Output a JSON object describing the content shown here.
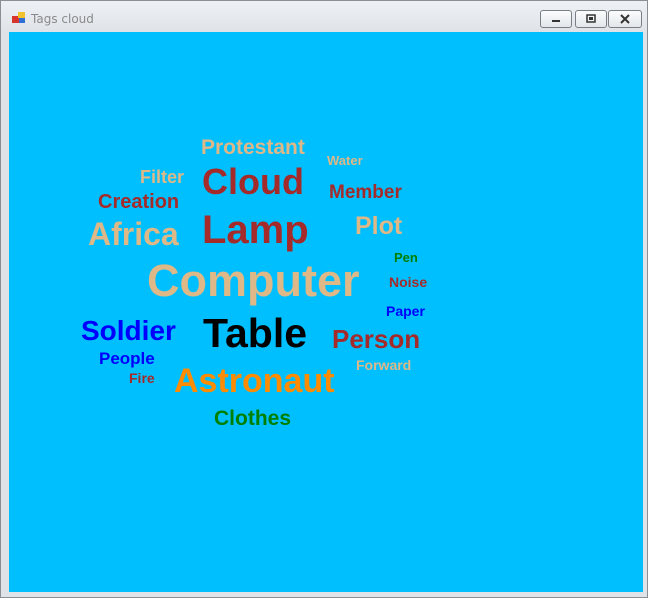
{
  "window": {
    "title": "Tags cloud"
  },
  "client": {
    "background": "#00bfff"
  },
  "colors": {
    "tan": "#deb887",
    "brown": "#a52a2a",
    "blue": "#0000ff",
    "black": "#000000",
    "orange": "#ff8c00",
    "green": "#008000"
  },
  "tags": [
    {
      "label": "Protestant",
      "color": "tan"
    },
    {
      "label": "Water",
      "color": "tan"
    },
    {
      "label": "Filter",
      "color": "tan"
    },
    {
      "label": "Cloud",
      "color": "brown"
    },
    {
      "label": "Member",
      "color": "brown"
    },
    {
      "label": "Creation",
      "color": "brown"
    },
    {
      "label": "Africa",
      "color": "tan"
    },
    {
      "label": "Lamp",
      "color": "brown"
    },
    {
      "label": "Plot",
      "color": "tan"
    },
    {
      "label": "Pen",
      "color": "green"
    },
    {
      "label": "Computer",
      "color": "tan"
    },
    {
      "label": "Noise",
      "color": "brown"
    },
    {
      "label": "Paper",
      "color": "blue"
    },
    {
      "label": "Soldier",
      "color": "blue"
    },
    {
      "label": "Table",
      "color": "black"
    },
    {
      "label": "Person",
      "color": "brown"
    },
    {
      "label": "People",
      "color": "blue"
    },
    {
      "label": "Forward",
      "color": "tan"
    },
    {
      "label": "Fire",
      "color": "brown"
    },
    {
      "label": "Astronaut",
      "color": "orange"
    },
    {
      "label": "Clothes",
      "color": "green"
    }
  ]
}
